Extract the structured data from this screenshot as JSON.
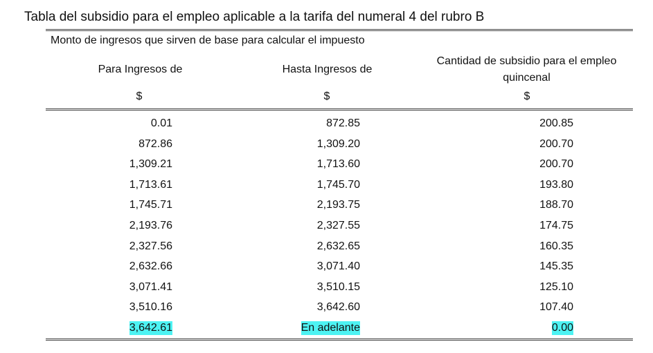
{
  "title": "Tabla del subsidio para el empleo aplicable a la tarifa del numeral 4 del rubro B",
  "subtitle": "Monto de ingresos que sirven de base para calcular el impuesto",
  "headers": {
    "col1": "Para Ingresos de",
    "col2": "Hasta Ingresos de",
    "col3_line1": "Cantidad de subsidio para el empleo",
    "col3_line2": "quincenal",
    "currency": "$"
  },
  "highlight_color": "#4df3f3",
  "rows": [
    {
      "desde": "0.01",
      "hasta": "872.85",
      "subsidio": "200.85"
    },
    {
      "desde": "872.86",
      "hasta": "1,309.20",
      "subsidio": "200.70"
    },
    {
      "desde": "1,309.21",
      "hasta": "1,713.60",
      "subsidio": "200.70"
    },
    {
      "desde": "1,713.61",
      "hasta": "1,745.70",
      "subsidio": "193.80"
    },
    {
      "desde": "1,745.71",
      "hasta": "2,193.75",
      "subsidio": "188.70"
    },
    {
      "desde": "2,193.76",
      "hasta": "2,327.55",
      "subsidio": "174.75"
    },
    {
      "desde": "2,327.56",
      "hasta": "2,632.65",
      "subsidio": "160.35"
    },
    {
      "desde": "2,632.66",
      "hasta": "3,071.40",
      "subsidio": "145.35"
    },
    {
      "desde": "3,071.41",
      "hasta": "3,510.15",
      "subsidio": "125.10"
    },
    {
      "desde": "3,510.16",
      "hasta": "3,642.60",
      "subsidio": "107.40"
    },
    {
      "desde": "3,642.61",
      "hasta": "En adelante",
      "subsidio": "0.00"
    }
  ]
}
